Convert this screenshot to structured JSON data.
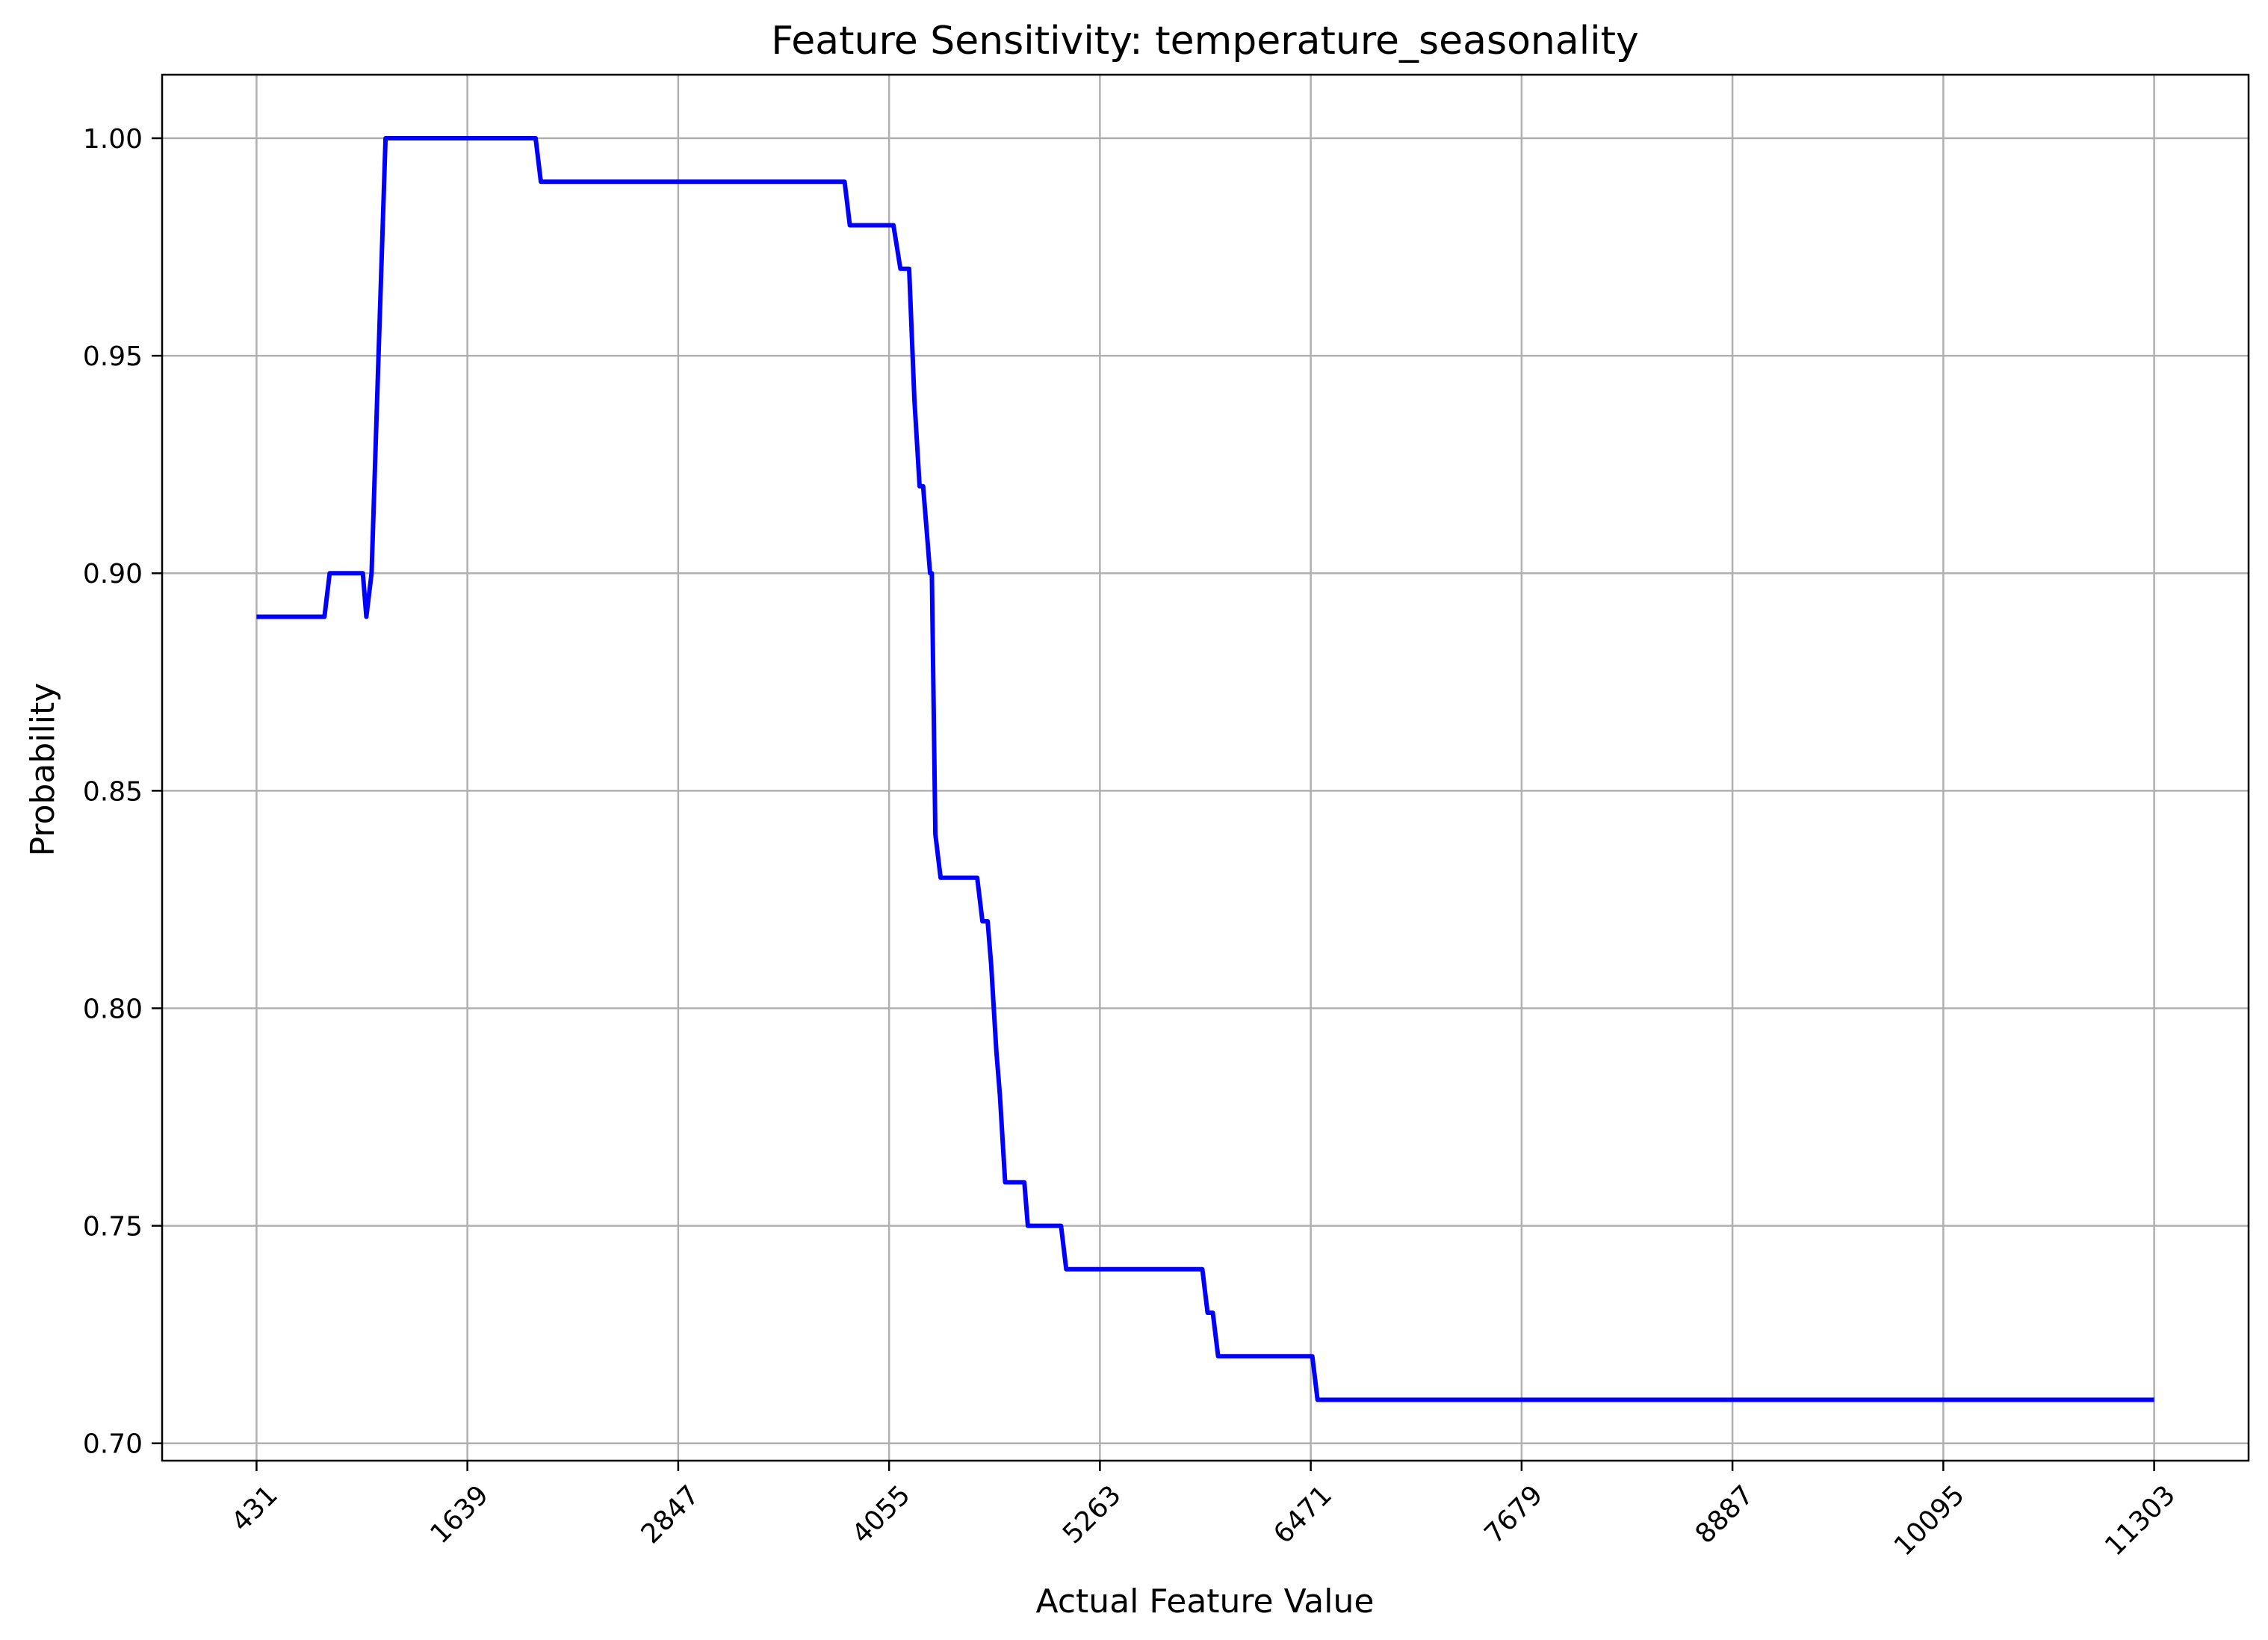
{
  "chart_data": {
    "type": "line",
    "title": "Feature Sensitivity: temperature_seasonality",
    "xlabel": "Actual Feature Value",
    "ylabel": "Probability",
    "xlim": [
      -110,
      11844
    ],
    "ylim": [
      0.696,
      1.0146
    ],
    "grid": true,
    "legend": "none",
    "x_ticks": [
      431,
      1639,
      2847,
      4055,
      5263,
      6471,
      7679,
      8887,
      10095,
      11303
    ],
    "x_tick_labels": [
      "431",
      "1639",
      "2847",
      "4055",
      "5263",
      "6471",
      "7679",
      "8887",
      "10095",
      "11303"
    ],
    "y_ticks": [
      0.7,
      0.75,
      0.8,
      0.85,
      0.9,
      0.95,
      1.0
    ],
    "y_tick_labels": [
      "0.70",
      "0.75",
      "0.80",
      "0.85",
      "0.90",
      "0.95",
      "1.00"
    ],
    "series": [
      {
        "color": "#0000ff",
        "x": [
          431,
          820,
          850,
          1040,
          1060,
          1090,
          1130,
          1170,
          2030,
          2060,
          3800,
          3830,
          4080,
          4120,
          4170,
          4200,
          4230,
          4250,
          4270,
          4290,
          4300,
          4320,
          4350,
          4410,
          4560,
          4590,
          4620,
          4640,
          4670,
          4690,
          4720,
          4830,
          4850,
          5040,
          5070,
          5850,
          5880,
          5910,
          5940,
          6480,
          6510,
          11303
        ],
        "y": [
          0.89,
          0.89,
          0.9,
          0.9,
          0.89,
          0.9,
          0.95,
          1.0,
          1.0,
          0.99,
          0.99,
          0.98,
          0.98,
          0.97,
          0.97,
          0.94,
          0.92,
          0.92,
          0.91,
          0.9,
          0.9,
          0.84,
          0.83,
          0.83,
          0.83,
          0.82,
          0.82,
          0.81,
          0.79,
          0.78,
          0.76,
          0.76,
          0.75,
          0.75,
          0.74,
          0.74,
          0.73,
          0.73,
          0.72,
          0.72,
          0.71,
          0.71
        ]
      }
    ]
  }
}
